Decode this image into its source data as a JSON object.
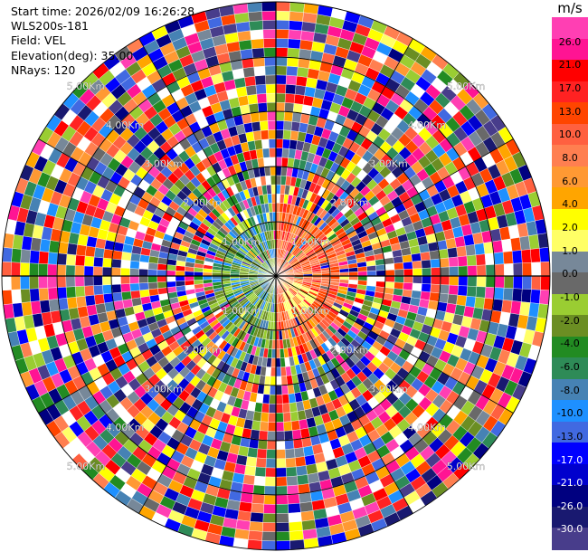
{
  "header": {
    "start_time": "Start time: 2026/02/09 16:26:28",
    "instrument": "WLS200s-181",
    "field": "Field: VEL",
    "elevation": "Elevation(deg): 35.00",
    "nrays": "NRays: 120"
  },
  "colorbar": {
    "unit": "m/s",
    "ticks": [
      "26.0",
      "21.0",
      "17.0",
      "13.0",
      "10.0",
      "8.0",
      "6.0",
      "4.0",
      "2.0",
      "1.0",
      "0.0",
      "-1.0",
      "-2.0",
      "-4.0",
      "-6.0",
      "-8.0",
      "-10.0",
      "-13.0",
      "-17.0",
      "-21.0",
      "-26.0",
      "-30.0"
    ],
    "colors": [
      "#ff3fb3",
      "#ff1493",
      "#ff0000",
      "#ff2222",
      "#ff4500",
      "#ff6040",
      "#ff7f50",
      "#ff9933",
      "#ffa500",
      "#ffff00",
      "#ffff66",
      "#778899",
      "#696969",
      "#9acd32",
      "#6b8e23",
      "#228b22",
      "#2e8b57",
      "#4682b4",
      "#1e90ff",
      "#4169e1",
      "#0000ff",
      "#0000cd",
      "#000080",
      "#191970",
      "#483d8b"
    ]
  },
  "chart_data": {
    "type": "heatmap",
    "subtype": "radar PPI (plan position indicator)",
    "field": "VEL",
    "unit": "m/s",
    "nrays": 120,
    "elevation_deg": 35.0,
    "range_rings_km": [
      "1.00Km",
      "2.00Km",
      "3.00Km",
      "4.00Km",
      "5.00Km"
    ],
    "value_range": [
      -30.0,
      30.0
    ],
    "near_field": {
      "east_half": "positive velocities (about 8 to 17 m/s, orange-red)",
      "west_half": "negative velocities (about -1 to -10 m/s, green-blue)"
    },
    "far_field": "noise (random values across the full scale)",
    "legend": "right"
  }
}
